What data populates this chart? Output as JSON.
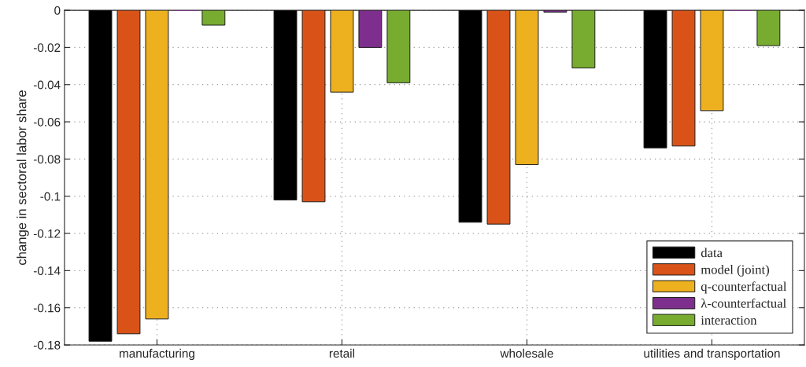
{
  "chart_data": {
    "type": "bar",
    "ylabel": "change in sectoral labor share",
    "categories": [
      "manufacturing",
      "retail",
      "wholesale",
      "utilities and transportation"
    ],
    "series": [
      {
        "name": "data",
        "color": "#000000",
        "values": [
          -0.178,
          -0.102,
          -0.114,
          -0.074
        ]
      },
      {
        "name": "model (joint)",
        "color": "#d95319",
        "values": [
          -0.174,
          -0.103,
          -0.115,
          -0.073
        ]
      },
      {
        "name": "q-counterfactual",
        "color": "#edb120",
        "values": [
          -0.166,
          -0.044,
          -0.083,
          -0.054
        ]
      },
      {
        "name": "λ-counterfactual",
        "color": "#7e2f8e",
        "values": [
          0,
          -0.02,
          -0.001,
          0
        ]
      },
      {
        "name": "interaction",
        "color": "#77ac30",
        "values": [
          -0.008,
          -0.039,
          -0.031,
          -0.019
        ]
      }
    ],
    "ylim": [
      -0.18,
      0
    ],
    "yticks": [
      0,
      -0.02,
      -0.04,
      -0.06,
      -0.08,
      -0.1,
      -0.12,
      -0.14,
      -0.16,
      -0.18
    ],
    "grid": true,
    "legend": "bottom right"
  }
}
